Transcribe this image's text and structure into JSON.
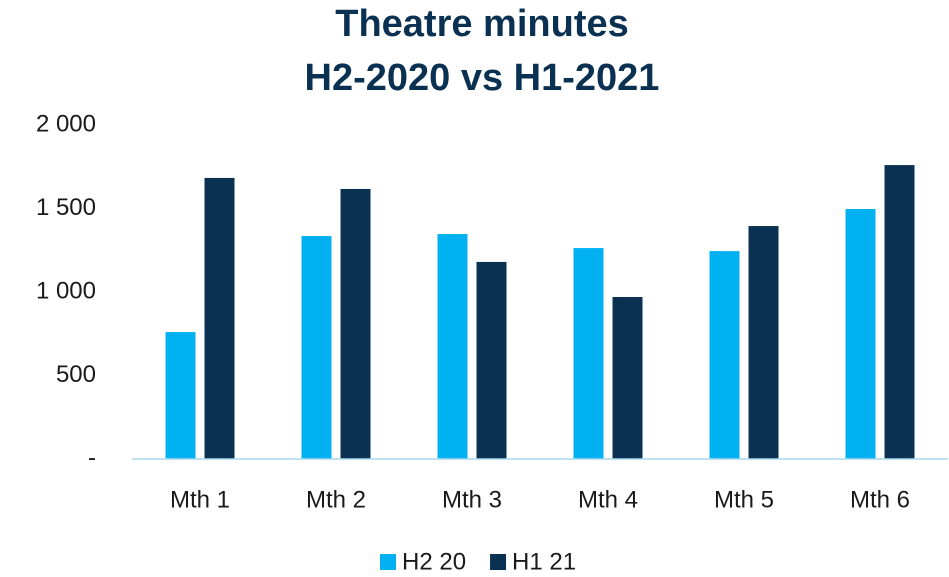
{
  "chart_data": {
    "type": "bar",
    "title": "Theatre minutes",
    "subtitle": "H2-2020 vs H1-2021",
    "categories": [
      "Mth 1",
      "Mth 2",
      "Mth 3",
      "Mth 4",
      "Mth 5",
      "Mth 6"
    ],
    "series": [
      {
        "name": "H2 20",
        "color": "#00b0f0",
        "values": [
          760,
          1335,
          1347,
          1263,
          1245,
          1497
        ]
      },
      {
        "name": "H1 21",
        "color": "#0b3152",
        "values": [
          1683,
          1617,
          1180,
          970,
          1395,
          1760
        ]
      }
    ],
    "ylim": [
      0,
      2000
    ],
    "yticks": [
      {
        "value": 0,
        "label": "-"
      },
      500,
      {
        "value": 1000,
        "label": "1 000"
      },
      {
        "value": 1500,
        "label": "1 500"
      },
      {
        "value": 2000,
        "label": "2 000"
      }
    ],
    "grid": false,
    "legend": "bottom"
  }
}
